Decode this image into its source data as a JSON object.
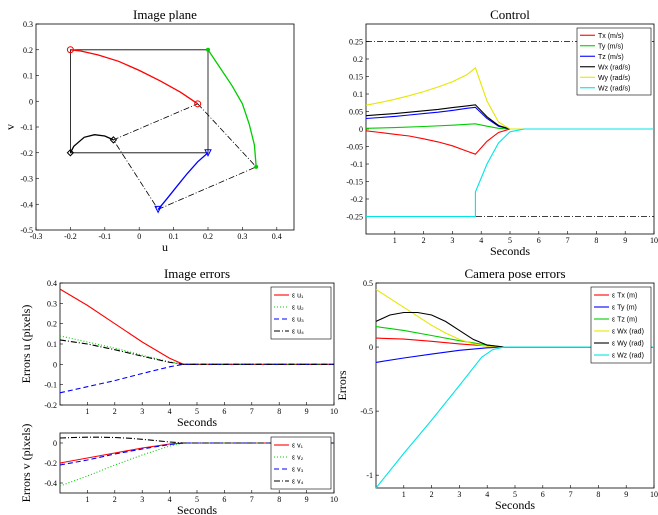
{
  "chart_data": [
    {
      "type": "line",
      "title": "Image plane",
      "xlabel": "u",
      "ylabel": "v",
      "xlim": [
        -0.3,
        0.45
      ],
      "ylim": [
        -0.5,
        0.3
      ],
      "xticks": [
        "-0.3",
        "-0.2",
        "-0.1",
        "0",
        "0.1",
        "0.2",
        "0.3",
        "0.4"
      ],
      "yticks": [
        "0.3",
        "0.2",
        "0.1",
        "0",
        "-0.1",
        "-0.2",
        "-0.3",
        "-0.4",
        "-0.5"
      ],
      "desired_square": [
        [
          -0.2,
          0.2
        ],
        [
          0.2,
          0.2
        ],
        [
          0.2,
          -0.2
        ],
        [
          -0.2,
          -0.2
        ]
      ],
      "initial_quad": [
        [
          0.17,
          -0.01
        ],
        [
          0.34,
          -0.255
        ],
        [
          0.055,
          -0.42
        ],
        [
          -0.075,
          -0.15
        ]
      ],
      "series": [
        {
          "color": "#ff0000",
          "marker": "o",
          "x": [
            0.17,
            0.12,
            0.06,
            0.0,
            -0.06,
            -0.12,
            -0.17,
            -0.2
          ],
          "y": [
            -0.01,
            0.035,
            0.08,
            0.12,
            0.155,
            0.18,
            0.195,
            0.2
          ]
        },
        {
          "color": "#00cc00",
          "marker": "*",
          "x": [
            0.34,
            0.335,
            0.32,
            0.3,
            0.27,
            0.24,
            0.215,
            0.2
          ],
          "y": [
            -0.255,
            -0.17,
            -0.09,
            -0.01,
            0.06,
            0.12,
            0.17,
            0.2
          ]
        },
        {
          "color": "#0000ff",
          "marker": "v",
          "x": [
            0.055,
            0.08,
            0.11,
            0.14,
            0.17,
            0.2
          ],
          "y": [
            -0.42,
            -0.38,
            -0.33,
            -0.28,
            -0.235,
            -0.2
          ]
        },
        {
          "color": "#000000",
          "marker": "d",
          "x": [
            -0.075,
            -0.1,
            -0.13,
            -0.16,
            -0.19,
            -0.2
          ],
          "y": [
            -0.15,
            -0.135,
            -0.13,
            -0.14,
            -0.175,
            -0.2
          ]
        }
      ]
    },
    {
      "type": "line",
      "title": "Control",
      "xlabel": "Seconds",
      "ylabel": "",
      "xlim": [
        0,
        10
      ],
      "ylim": [
        -0.3,
        0.3
      ],
      "xticks": [
        "1",
        "2",
        "3",
        "4",
        "5",
        "6",
        "7",
        "8",
        "9",
        "10"
      ],
      "yticks": [
        "0.25",
        "0.2",
        "0.15",
        "0.1",
        "0.05",
        "0",
        "-0.05",
        "-0.1",
        "-0.15",
        "-0.2",
        "-0.25"
      ],
      "limit_lines": [
        0.25,
        -0.25
      ],
      "legend_position": "top-right",
      "series": [
        {
          "name": "Tx (m/s)",
          "color": "#ff0000",
          "dash": "",
          "x": [
            0,
            0.5,
            1,
            1.5,
            2,
            2.5,
            3,
            3.5,
            3.8,
            4.2,
            4.6,
            5,
            10
          ],
          "y": [
            -0.005,
            -0.01,
            -0.015,
            -0.02,
            -0.028,
            -0.037,
            -0.048,
            -0.063,
            -0.072,
            -0.035,
            -0.01,
            0,
            0
          ]
        },
        {
          "name": "Ty (m/s)",
          "color": "#00cc00",
          "dash": "",
          "x": [
            0,
            1,
            2,
            3,
            3.8,
            4.2,
            4.6,
            5,
            10
          ],
          "y": [
            0.002,
            0.004,
            0.007,
            0.011,
            0.015,
            0.008,
            0.002,
            0,
            0
          ]
        },
        {
          "name": "Tz (m/s)",
          "color": "#0000ff",
          "dash": "",
          "x": [
            0,
            0.5,
            1,
            1.5,
            2,
            2.5,
            3,
            3.5,
            3.8,
            4.2,
            4.6,
            5,
            10
          ],
          "y": [
            0.03,
            0.033,
            0.036,
            0.04,
            0.044,
            0.048,
            0.053,
            0.059,
            0.062,
            0.03,
            0.008,
            0,
            0
          ]
        },
        {
          "name": "Wx (rad/s)",
          "color": "#000000",
          "dash": "",
          "x": [
            0,
            0.5,
            1,
            1.5,
            2,
            2.5,
            3,
            3.5,
            3.8,
            4.2,
            4.6,
            5,
            10
          ],
          "y": [
            0.038,
            0.041,
            0.044,
            0.048,
            0.052,
            0.056,
            0.061,
            0.066,
            0.069,
            0.035,
            0.01,
            0,
            0
          ]
        },
        {
          "name": "Wy (rad/s)",
          "color": "#e6e600",
          "dash": "",
          "x": [
            0,
            0.5,
            1,
            1.5,
            2,
            2.5,
            3,
            3.5,
            3.8,
            4.2,
            4.6,
            5,
            10
          ],
          "y": [
            0.068,
            0.076,
            0.085,
            0.095,
            0.107,
            0.12,
            0.135,
            0.155,
            0.175,
            0.08,
            0.02,
            0,
            0
          ]
        },
        {
          "name": "Wz (rad/s)",
          "color": "#00e5e5",
          "dash": "",
          "x": [
            0,
            3.8,
            3.8,
            4.2,
            4.6,
            5,
            5.5,
            10
          ],
          "y": [
            -0.25,
            -0.25,
            -0.18,
            -0.1,
            -0.04,
            -0.008,
            0,
            0
          ]
        }
      ]
    },
    {
      "type": "line",
      "title": "Image errors",
      "xlabel": "Seconds",
      "ylabel": "Errors u (pixels)",
      "xlim": [
        0,
        10
      ],
      "ylim": [
        -0.2,
        0.4
      ],
      "xticks": [
        "1",
        "2",
        "3",
        "4",
        "5",
        "6",
        "7",
        "8",
        "9",
        "10"
      ],
      "yticks": [
        "0.4",
        "0.3",
        "0.2",
        "0.1",
        "0",
        "-0.1",
        "-0.2"
      ],
      "legend_position": "top-right",
      "series": [
        {
          "name": "ε u₁",
          "color": "#ff0000",
          "dash": "",
          "x": [
            0,
            1,
            2,
            3,
            4,
            4.5,
            10
          ],
          "y": [
            0.37,
            0.29,
            0.2,
            0.11,
            0.03,
            0,
            0
          ]
        },
        {
          "name": "ε u₂",
          "color": "#00cc00",
          "dash": "1,2",
          "x": [
            0,
            1,
            2,
            3,
            4,
            4.5,
            10
          ],
          "y": [
            0.14,
            0.11,
            0.08,
            0.045,
            0.012,
            0,
            0
          ]
        },
        {
          "name": "ε u₃",
          "color": "#0000ff",
          "dash": "5,3",
          "x": [
            0,
            1,
            2,
            3,
            4,
            4.5,
            10
          ],
          "y": [
            -0.14,
            -0.11,
            -0.08,
            -0.045,
            -0.012,
            0,
            0
          ]
        },
        {
          "name": "ε u₄",
          "color": "#000000",
          "dash": "6,2,1,2",
          "x": [
            0,
            1,
            2,
            3,
            4,
            4.5,
            10
          ],
          "y": [
            0.12,
            0.1,
            0.072,
            0.04,
            0.01,
            0,
            0
          ]
        }
      ]
    },
    {
      "type": "line",
      "title": "",
      "xlabel": "Seconds",
      "ylabel": "Errors v (pixels)",
      "xlim": [
        0,
        10
      ],
      "ylim": [
        -0.5,
        0.1
      ],
      "xticks": [
        "1",
        "2",
        "3",
        "4",
        "5",
        "6",
        "7",
        "8",
        "9",
        "10"
      ],
      "yticks": [
        "0",
        "-0.2",
        "-0.4"
      ],
      "legend_position": "right",
      "series": [
        {
          "name": "ε v₁",
          "color": "#ff0000",
          "dash": "",
          "x": [
            0,
            1,
            2,
            3,
            4,
            4.5,
            10
          ],
          "y": [
            -0.2,
            -0.15,
            -0.1,
            -0.05,
            -0.01,
            0,
            0
          ]
        },
        {
          "name": "ε v₂",
          "color": "#00cc00",
          "dash": "1,2",
          "x": [
            0,
            1,
            2,
            3,
            4,
            4.5,
            10
          ],
          "y": [
            -0.43,
            -0.33,
            -0.22,
            -0.12,
            -0.03,
            0,
            0
          ]
        },
        {
          "name": "ε v₃",
          "color": "#0000ff",
          "dash": "5,3",
          "x": [
            0,
            1,
            2,
            3,
            4,
            4.5,
            10
          ],
          "y": [
            -0.22,
            -0.17,
            -0.11,
            -0.06,
            -0.015,
            0,
            0
          ]
        },
        {
          "name": "ε v₄",
          "color": "#000000",
          "dash": "6,2,1,2",
          "x": [
            0,
            0.5,
            1,
            1.5,
            2,
            2.5,
            3,
            3.5,
            4,
            4.5,
            10
          ],
          "y": [
            0.05,
            0.055,
            0.058,
            0.058,
            0.055,
            0.048,
            0.037,
            0.024,
            0.01,
            0,
            0
          ]
        }
      ]
    },
    {
      "type": "line",
      "title": "Camera pose errors",
      "xlabel": "Seconds",
      "ylabel": "Errors",
      "xlim": [
        0,
        10
      ],
      "ylim": [
        -1.1,
        0.5
      ],
      "xticks": [
        "1",
        "2",
        "3",
        "4",
        "5",
        "6",
        "7",
        "8",
        "9",
        "10"
      ],
      "yticks": [
        "0.5",
        "0",
        "-0.5",
        "-1"
      ],
      "legend_position": "top-right",
      "series": [
        {
          "name": "ε Tx (m)",
          "color": "#ff0000",
          "dash": "",
          "x": [
            0,
            1,
            2,
            3,
            4,
            4.6,
            10
          ],
          "y": [
            0.07,
            0.062,
            0.045,
            0.025,
            0.008,
            0,
            0
          ]
        },
        {
          "name": "ε Ty (m)",
          "color": "#0000ff",
          "dash": "",
          "x": [
            0,
            1,
            2,
            3,
            4,
            4.6,
            10
          ],
          "y": [
            -0.12,
            -0.085,
            -0.055,
            -0.025,
            -0.006,
            0,
            0
          ]
        },
        {
          "name": "ε Tz (m)",
          "color": "#00cc00",
          "dash": "",
          "x": [
            0,
            1,
            2,
            3,
            4,
            4.6,
            10
          ],
          "y": [
            0.16,
            0.13,
            0.09,
            0.05,
            0.015,
            0,
            0
          ]
        },
        {
          "name": "ε Wx (rad)",
          "color": "#e6e600",
          "dash": "",
          "x": [
            0,
            0.5,
            1,
            1.5,
            2,
            2.5,
            3,
            3.5,
            4,
            4.6,
            10
          ],
          "y": [
            0.45,
            0.38,
            0.31,
            0.24,
            0.17,
            0.11,
            0.06,
            0.025,
            0.006,
            0,
            0
          ]
        },
        {
          "name": "ε Wy (rad)",
          "color": "#000000",
          "dash": "",
          "x": [
            0,
            0.5,
            1,
            1.5,
            2,
            2.5,
            3,
            3.5,
            4,
            4.6,
            10
          ],
          "y": [
            0.2,
            0.25,
            0.27,
            0.27,
            0.25,
            0.2,
            0.13,
            0.06,
            0.015,
            0,
            0
          ]
        },
        {
          "name": "ε Wz (rad)",
          "color": "#00e5e5",
          "dash": "",
          "x": [
            0,
            1,
            2,
            3,
            3.8,
            4.2,
            4.6,
            10
          ],
          "y": [
            -1.1,
            -0.83,
            -0.57,
            -0.3,
            -0.08,
            -0.02,
            0,
            0
          ]
        }
      ]
    }
  ]
}
